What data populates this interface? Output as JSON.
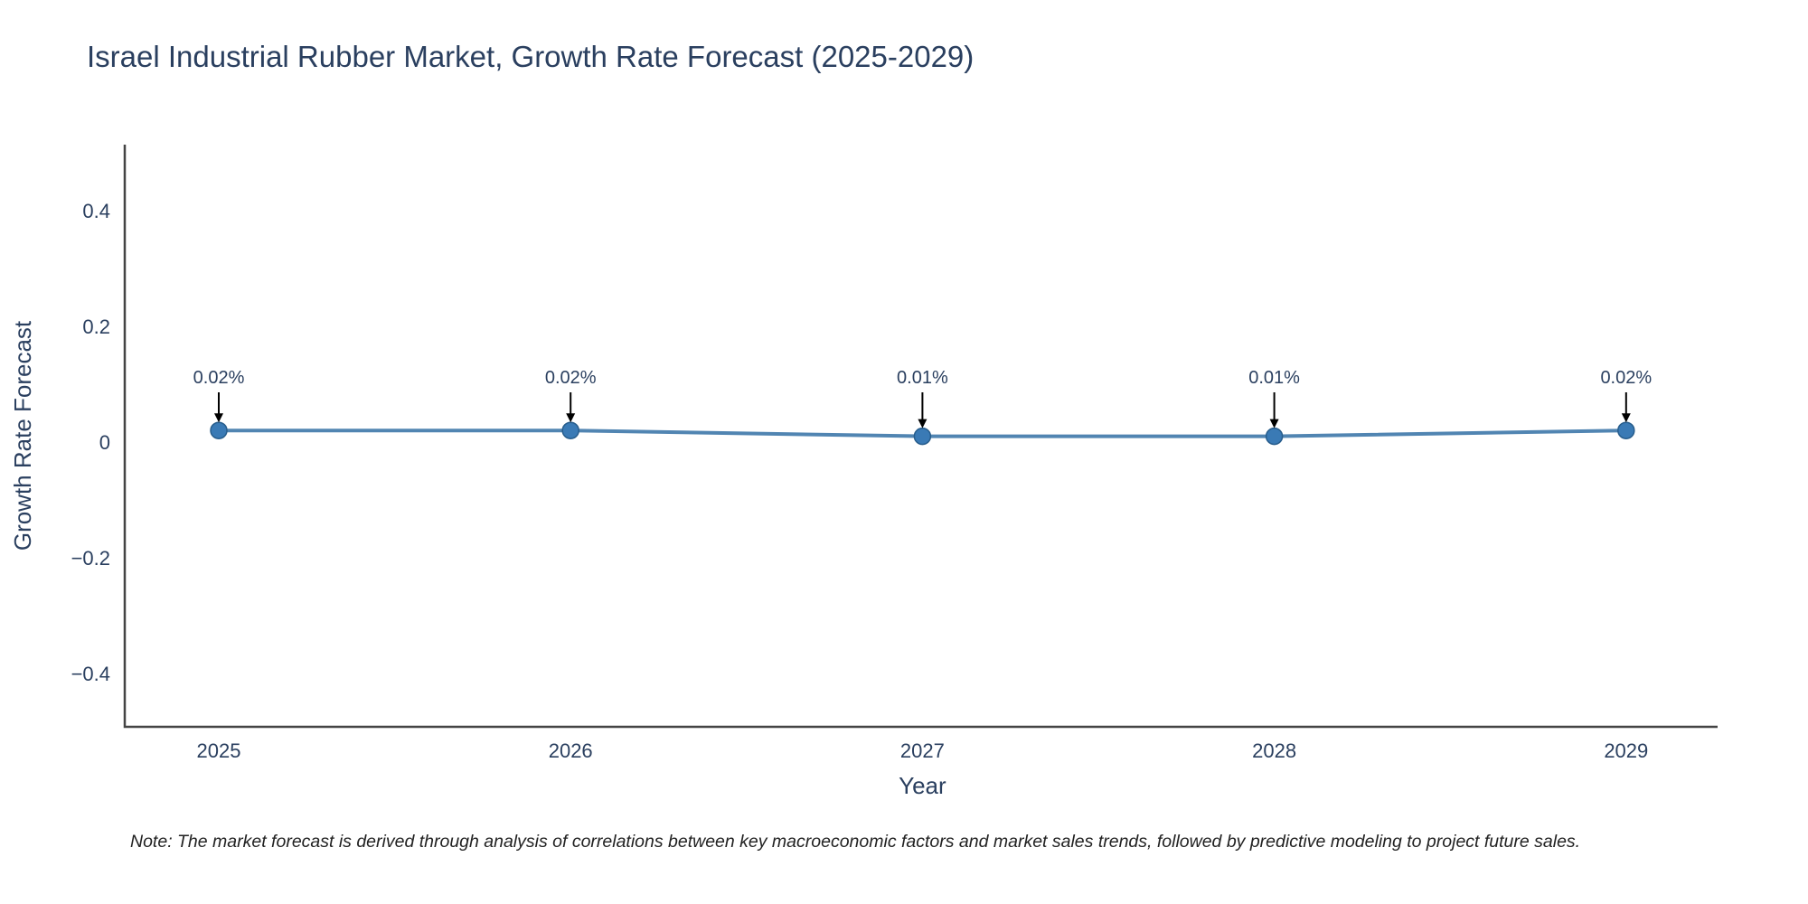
{
  "chart_data": {
    "type": "line",
    "title": "Israel Industrial Rubber Market, Growth Rate Forecast (2025-2029)",
    "xlabel": "Year",
    "ylabel": "Growth Rate Forecast",
    "categories": [
      "2025",
      "2026",
      "2027",
      "2028",
      "2029"
    ],
    "values": [
      0.02,
      0.02,
      0.01,
      0.01,
      0.02
    ],
    "point_labels": [
      "0.02%",
      "0.02%",
      "0.01%",
      "0.01%",
      "0.02%"
    ],
    "y_ticks": [
      {
        "label": "0.4",
        "value": 0.4
      },
      {
        "label": "0.2",
        "value": 0.2
      },
      {
        "label": "0",
        "value": 0
      },
      {
        "label": "−0.2",
        "value": -0.2
      },
      {
        "label": "−0.4",
        "value": -0.4
      }
    ],
    "ylim": [
      -0.5,
      0.5
    ],
    "grid": false,
    "legend": "none",
    "line_color": "#5185b2",
    "marker_color": "#3a7ab5",
    "marker_edge_color": "#275d8c",
    "axis_color": "#444444",
    "text_color": "#2a3f5f",
    "annotation_arrow_color": "#000000",
    "note": "Note: The market forecast is derived through analysis of correlations between key macroeconomic factors and market sales trends, followed by predictive modeling to project future sales."
  }
}
